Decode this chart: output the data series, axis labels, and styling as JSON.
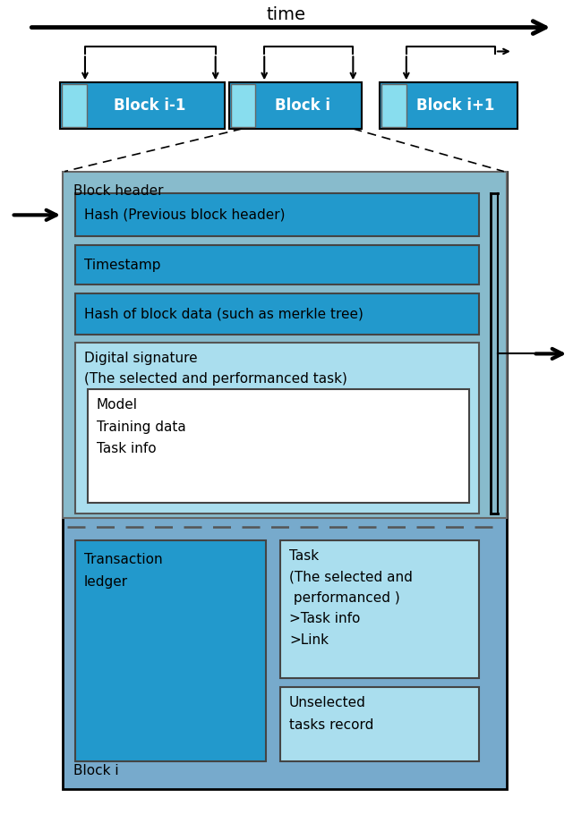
{
  "title": "time",
  "colors": {
    "medium_blue": "#2299cc",
    "light_blue": "#88ddee",
    "very_light_blue": "#aadeee",
    "block_header_bg": "#88bbcc",
    "outer_bg": "#77aacc",
    "dig_sig_bg": "#aadeee",
    "white_box": "#ffffff"
  },
  "block_labels": [
    "Block i-1",
    "Block i",
    "Block i+1"
  ],
  "labels": {
    "block_header": "Block header",
    "hash_prev": "Hash (Previous block header)",
    "timestamp": "Timestamp",
    "hash_merkle": "Hash of block data (such as merkle tree)",
    "digital_sig_line1": "Digital signature",
    "digital_sig_line2": "(The selected and performanced task)",
    "model": "Model\nTraining data\nTask info",
    "transaction": "Transaction\nledger",
    "task": "Task\n(The selected and\n performanced )\n>Task info\n>Link",
    "unselected": "Unselected\ntasks record",
    "block_i": "Block i"
  }
}
